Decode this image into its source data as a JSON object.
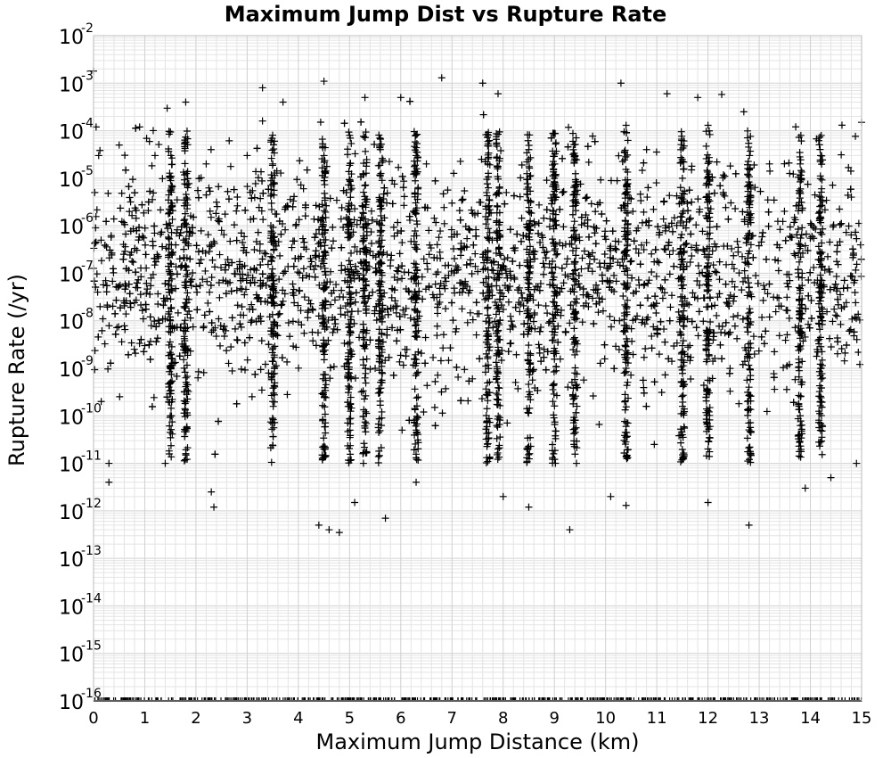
{
  "chart_data": {
    "type": "scatter",
    "title": "Maximum Jump Dist vs Rupture Rate",
    "xlabel": "Maximum Jump Distance (km)",
    "ylabel": "Rupture Rate (/yr)",
    "xlim": [
      0,
      15
    ],
    "ylim_log10": [
      -16,
      -2
    ],
    "y_scale": "log",
    "grid": true,
    "marker": "+",
    "marker_color": "#000000",
    "x_ticks": [
      "0",
      "1",
      "2",
      "3",
      "4",
      "5",
      "6",
      "7",
      "8",
      "9",
      "10",
      "11",
      "12",
      "13",
      "14",
      "15"
    ],
    "y_ticks": [
      {
        "base": "10",
        "exp": "-2"
      },
      {
        "base": "10",
        "exp": "-3"
      },
      {
        "base": "10",
        "exp": "-4"
      },
      {
        "base": "10",
        "exp": "-5"
      },
      {
        "base": "10",
        "exp": "-6"
      },
      {
        "base": "10",
        "exp": "-7"
      },
      {
        "base": "10",
        "exp": "-8"
      },
      {
        "base": "10",
        "exp": "-9"
      },
      {
        "base": "10",
        "exp": "-10"
      },
      {
        "base": "10",
        "exp": "-11"
      },
      {
        "base": "10",
        "exp": "-12"
      },
      {
        "base": "10",
        "exp": "-13"
      },
      {
        "base": "10",
        "exp": "-14"
      },
      {
        "base": "10",
        "exp": "-15"
      },
      {
        "base": "10",
        "exp": "-16"
      }
    ],
    "dense_columns_km": [
      1.5,
      1.8,
      3.5,
      4.5,
      5.0,
      5.3,
      5.6,
      6.3,
      7.7,
      7.9,
      8.5,
      9.0,
      9.4,
      10.4,
      11.5,
      12.0,
      12.8,
      13.8,
      14.2
    ],
    "points_summary": "Dense clusters of rupture rates mostly between 1e-11 and 1e-4 /yr across 0-15 km, with a continuous band of points at the 1e-16 floor.",
    "points": [
      [
        0.0,
        0.0018
      ],
      [
        0.05,
        0.00012
      ],
      [
        0.1,
        3e-05
      ],
      [
        0.15,
        2e-10
      ],
      [
        0.3,
        1e-11
      ],
      [
        0.3,
        4e-12
      ],
      [
        0.5,
        5e-05
      ],
      [
        0.7,
        2e-06
      ],
      [
        0.9,
        0.00012
      ],
      [
        1.0,
        3e-09
      ],
      [
        1.2,
        3e-05
      ],
      [
        1.4,
        1e-11
      ],
      [
        1.5,
        1e-05
      ],
      [
        1.5,
        1e-06
      ],
      [
        1.5,
        1e-07
      ],
      [
        1.5,
        1e-08
      ],
      [
        1.5,
        1e-09
      ],
      [
        1.5,
        1e-10
      ],
      [
        1.8,
        0.0004
      ],
      [
        1.8,
        3e-06
      ],
      [
        1.8,
        2e-08
      ],
      [
        1.8,
        5e-11
      ],
      [
        2.2,
        2e-05
      ],
      [
        2.3,
        2.5e-12
      ],
      [
        2.35,
        1.2e-12
      ],
      [
        2.5,
        8e-07
      ],
      [
        2.8,
        4e-09
      ],
      [
        3.0,
        3e-05
      ],
      [
        3.3,
        0.0008
      ],
      [
        3.5,
        2e-05
      ],
      [
        3.5,
        5e-07
      ],
      [
        3.5,
        6e-09
      ],
      [
        3.5,
        2e-10
      ],
      [
        3.7,
        0.0004
      ],
      [
        4.1,
        6e-06
      ],
      [
        4.4,
        5e-13
      ],
      [
        4.5,
        0.0011
      ],
      [
        4.5,
        3e-05
      ],
      [
        4.5,
        2e-07
      ],
      [
        4.5,
        3e-09
      ],
      [
        4.5,
        2e-11
      ],
      [
        4.6,
        4e-13
      ],
      [
        4.8,
        3.5e-13
      ],
      [
        5.0,
        8e-05
      ],
      [
        5.0,
        2e-06
      ],
      [
        5.0,
        5e-08
      ],
      [
        5.0,
        4e-10
      ],
      [
        5.1,
        1.5e-12
      ],
      [
        5.3,
        0.0005
      ],
      [
        5.3,
        7e-06
      ],
      [
        5.3,
        3e-08
      ],
      [
        5.5,
        1e-09
      ],
      [
        5.6,
        4e-05
      ],
      [
        5.6,
        8e-07
      ],
      [
        5.7,
        7e-13
      ],
      [
        5.9,
        2e-08
      ],
      [
        6.0,
        0.0005
      ],
      [
        6.3,
        3e-05
      ],
      [
        6.3,
        4e-07
      ],
      [
        6.3,
        6e-09
      ],
      [
        6.3,
        5e-11
      ],
      [
        6.3,
        4e-12
      ],
      [
        6.5,
        2e-05
      ],
      [
        6.8,
        0.0013
      ],
      [
        7.0,
        3e-06
      ],
      [
        7.2,
        4e-08
      ],
      [
        7.4,
        6e-10
      ],
      [
        7.6,
        0.001
      ],
      [
        7.7,
        2e-05
      ],
      [
        7.7,
        3e-07
      ],
      [
        7.7,
        4e-09
      ],
      [
        7.9,
        0.0006
      ],
      [
        7.9,
        5e-06
      ],
      [
        7.9,
        8e-08
      ],
      [
        7.9,
        2e-11
      ],
      [
        8.0,
        2e-12
      ],
      [
        8.5,
        4e-05
      ],
      [
        8.5,
        2e-06
      ],
      [
        8.5,
        6e-09
      ],
      [
        8.5,
        1.2e-12
      ],
      [
        9.0,
        1e-05
      ],
      [
        9.0,
        3e-07
      ],
      [
        9.0,
        5e-09
      ],
      [
        9.3,
        4e-13
      ],
      [
        9.4,
        3e-05
      ],
      [
        9.4,
        5e-07
      ],
      [
        9.4,
        8e-10
      ],
      [
        9.8,
        2e-06
      ],
      [
        10.1,
        2e-12
      ],
      [
        10.3,
        0.001
      ],
      [
        10.4,
        0.00013
      ],
      [
        10.4,
        5e-06
      ],
      [
        10.4,
        3e-07
      ],
      [
        10.4,
        2e-08
      ],
      [
        10.4,
        1e-09
      ],
      [
        10.4,
        6e-11
      ],
      [
        10.4,
        1.3e-12
      ],
      [
        10.8,
        4e-05
      ],
      [
        11.2,
        0.0006
      ],
      [
        11.5,
        1e-05
      ],
      [
        11.5,
        2e-07
      ],
      [
        11.5,
        3e-09
      ],
      [
        11.5,
        4e-11
      ],
      [
        11.8,
        0.0005
      ],
      [
        12.0,
        0.00013
      ],
      [
        12.0,
        4e-06
      ],
      [
        12.0,
        1e-07
      ],
      [
        12.0,
        3e-09
      ],
      [
        12.0,
        2e-11
      ],
      [
        12.0,
        1.5e-12
      ],
      [
        12.3,
        5e-06
      ],
      [
        12.7,
        0.00025
      ],
      [
        12.8,
        3e-06
      ],
      [
        12.8,
        5e-08
      ],
      [
        12.8,
        4e-10
      ],
      [
        12.8,
        5e-13
      ],
      [
        13.2,
        2e-05
      ],
      [
        13.6,
        6e-07
      ],
      [
        13.8,
        2e-05
      ],
      [
        13.8,
        4e-07
      ],
      [
        13.8,
        6e-09
      ],
      [
        13.8,
        1e-10
      ],
      [
        13.9,
        3e-12
      ],
      [
        14.2,
        3e-05
      ],
      [
        14.2,
        5e-08
      ],
      [
        14.2,
        2e-10
      ],
      [
        14.4,
        5e-12
      ],
      [
        14.8,
        4e-06
      ],
      [
        14.9,
        1e-11
      ],
      [
        15.0,
        0.00015
      ]
    ],
    "floor_value": 1e-16
  }
}
